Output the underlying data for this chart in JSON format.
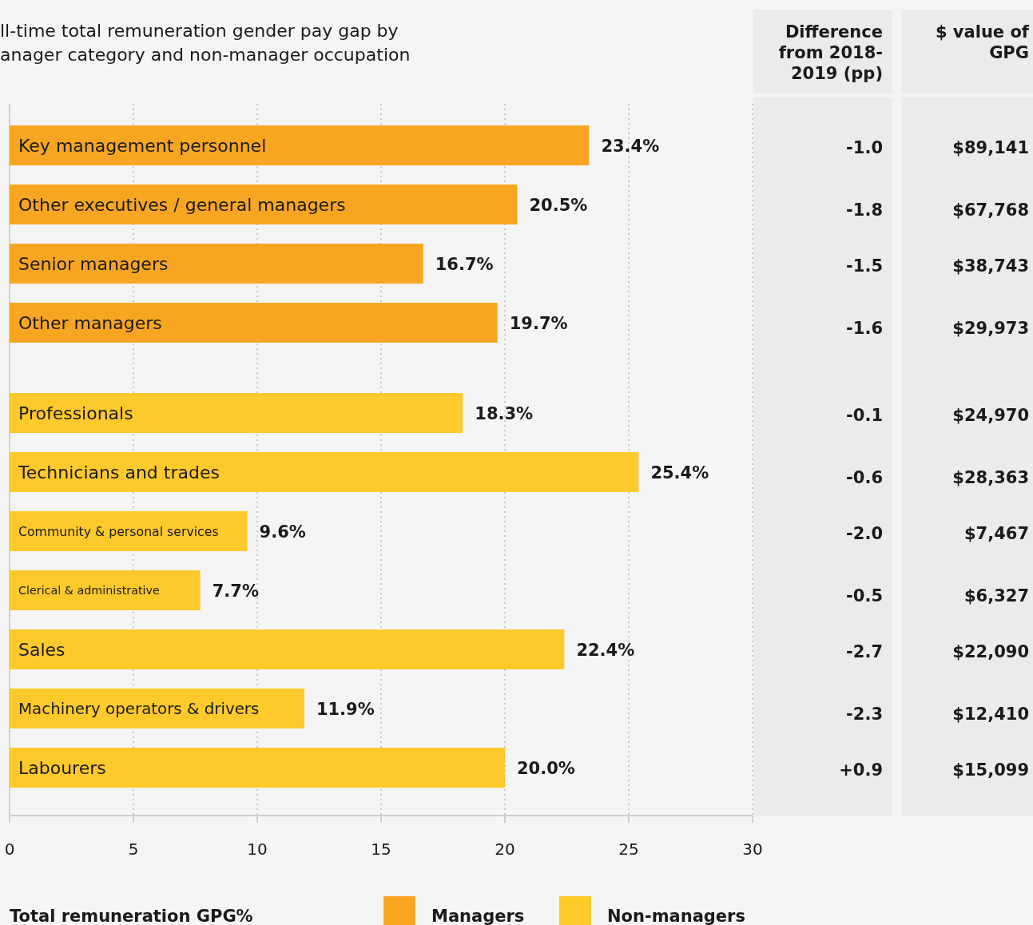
{
  "chart_data": [
    {
      "type": "bar",
      "orientation": "horizontal",
      "title": "ll-time total remuneration gender pay gap by anager category and non-manager occupation",
      "xlabel": "Total remuneration GPG%",
      "categories": [
        "Key management personnel",
        "Other executives / general managers",
        "Senior managers",
        "Other managers",
        "Professionals",
        "Technicians and trades",
        "Community & personal services",
        "Clerical & administrative",
        "Sales",
        "Machinery operators & drivers",
        "Labourers"
      ],
      "series": [
        {
          "name": "Managers",
          "color": "#f8a622",
          "values": [
            23.4,
            20.5,
            16.7,
            19.7,
            null,
            null,
            null,
            null,
            null,
            null,
            null
          ],
          "value_labels": [
            "23.4%",
            "20.5%",
            "16.7%",
            "19.7%",
            null,
            null,
            null,
            null,
            null,
            null,
            null
          ]
        },
        {
          "name": "Non-managers",
          "color": "#fdc92b",
          "values": [
            null,
            null,
            null,
            null,
            18.3,
            25.4,
            9.6,
            7.7,
            22.4,
            11.9,
            20.0
          ],
          "value_labels": [
            null,
            null,
            null,
            null,
            "18.3%",
            "25.4%",
            "9.6%",
            "7.7%",
            "22.4%",
            "11.9%",
            "20.0%"
          ]
        }
      ],
      "xlim": [
        0,
        30
      ],
      "xticks": [
        0,
        5,
        10,
        15,
        20,
        25,
        30
      ],
      "grid": "x",
      "legend": "bottom"
    },
    {
      "type": "other",
      "title": "Difference from 2018- 2019 (pp)",
      "value_labels": [
        "-1.0",
        "-1.8",
        "-1.5",
        "-1.6",
        "-0.1",
        "-0.6",
        "-2.0",
        "-0.5",
        "-2.7",
        "-2.3",
        "+0.9"
      ]
    },
    {
      "type": "other",
      "title": "$ value of GPG",
      "value_labels": [
        "$89,141",
        "$67,768",
        "$38,743",
        "$29,973",
        "$24,970",
        "$28,363",
        "$7,467",
        "$6,327",
        "$22,090",
        "$12,410",
        "$15,099"
      ]
    }
  ]
}
